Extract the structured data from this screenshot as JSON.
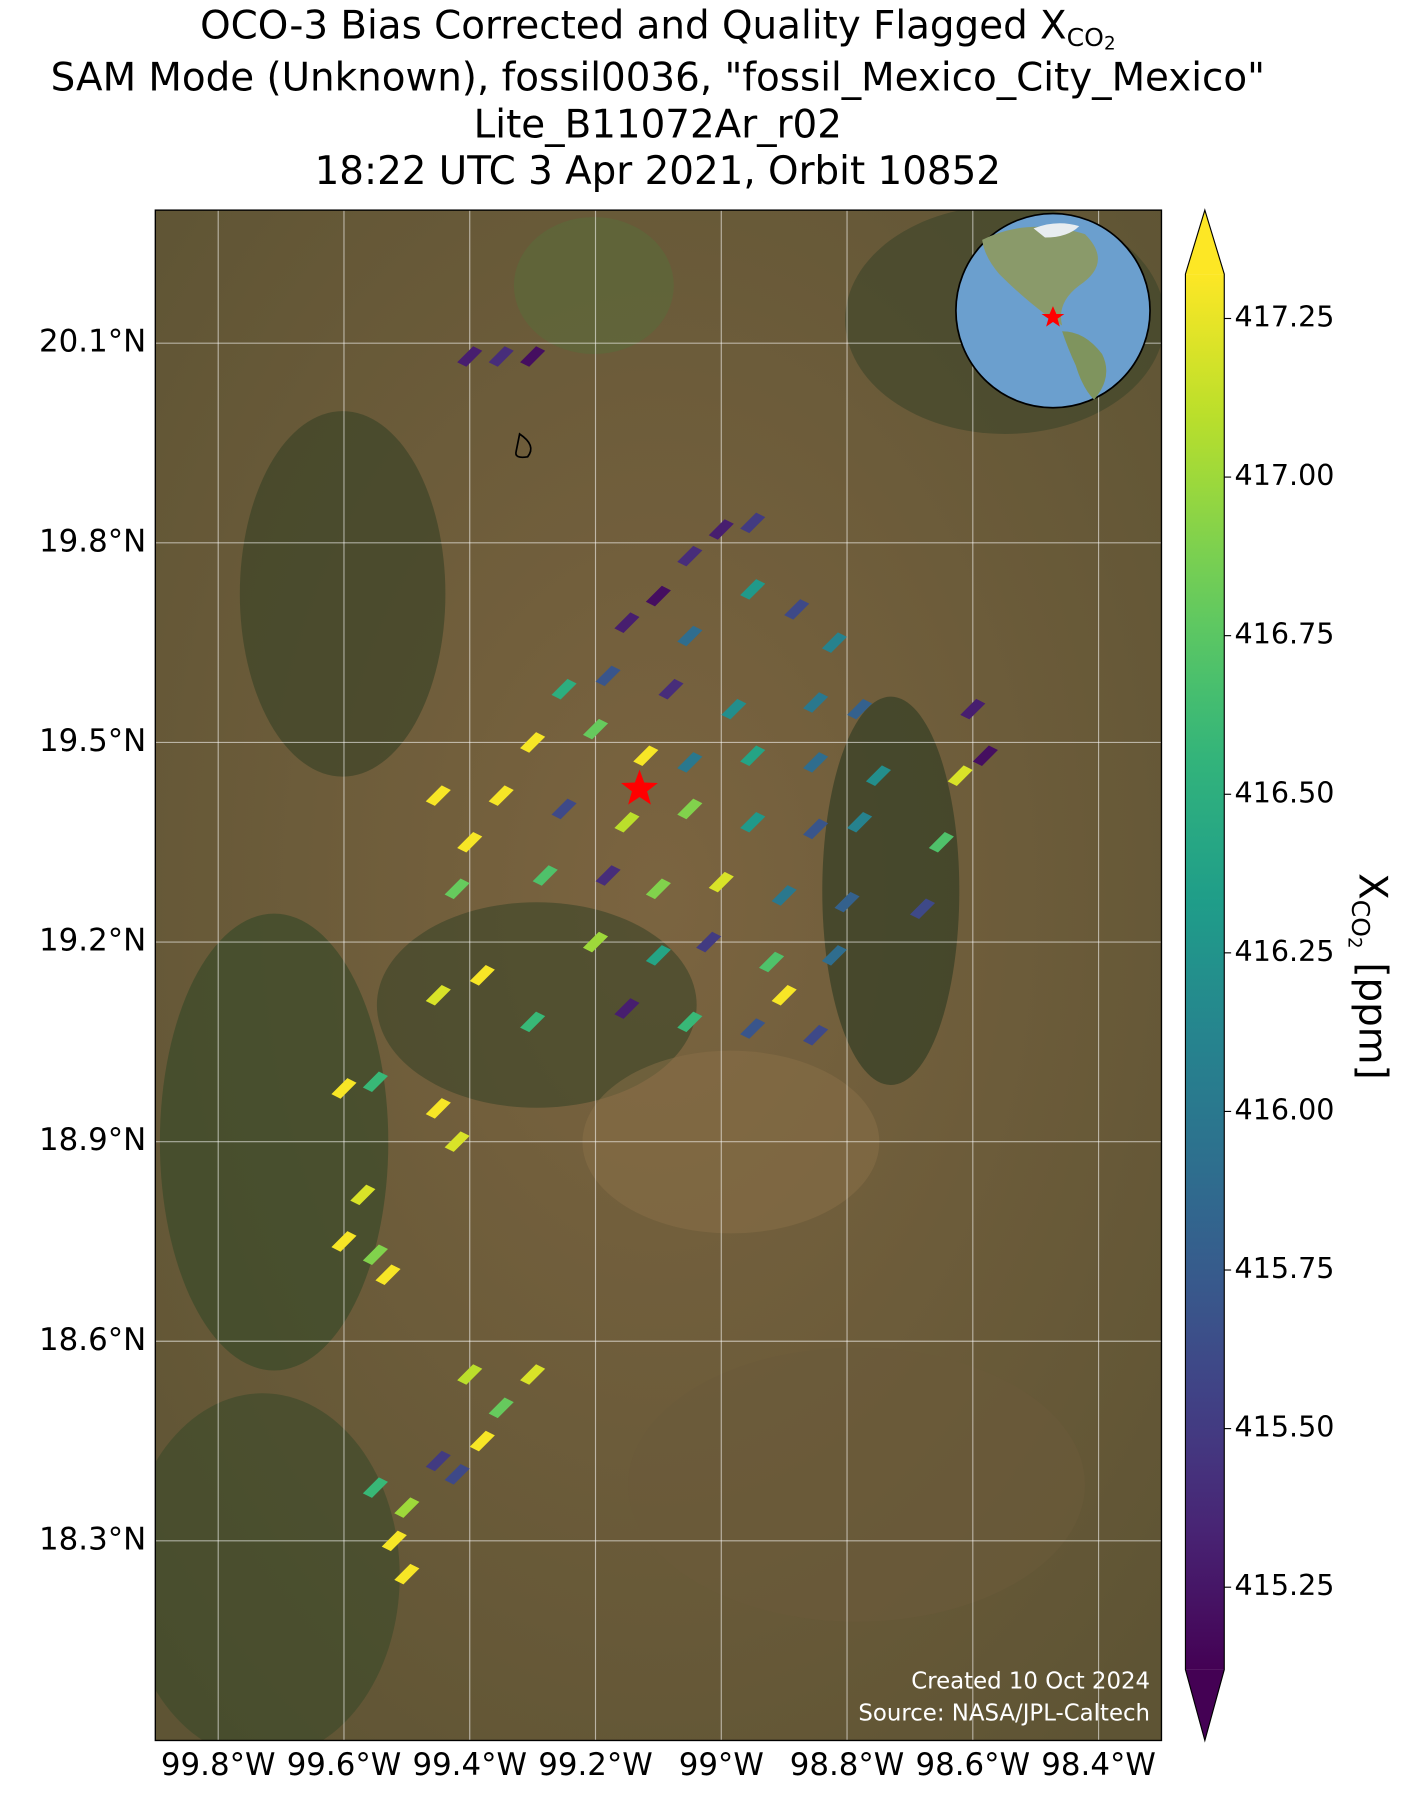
{
  "chart_data": {
    "type": "map",
    "title": {
      "line1": "OCO-3 Bias Corrected and Quality Flagged X",
      "line1_sub": "CO",
      "line1_subsub": "2",
      "line2": "SAM Mode (Unknown), fossil0036, \"fossil_Mexico_City_Mexico\"",
      "line3": "Lite_B11072Ar_r02",
      "line4": "18:22 UTC 3 Apr 2021, Orbit 10852"
    },
    "xlim": [
      -99.9,
      -98.3
    ],
    "ylim": [
      18.0,
      20.3
    ],
    "xticks": [
      {
        "value": -99.8,
        "label": "99.8°W"
      },
      {
        "value": -99.6,
        "label": "99.6°W"
      },
      {
        "value": -99.4,
        "label": "99.4°W"
      },
      {
        "value": -99.2,
        "label": "99.2°W"
      },
      {
        "value": -99.0,
        "label": "99°W"
      },
      {
        "value": -98.8,
        "label": "98.8°W"
      },
      {
        "value": -98.6,
        "label": "98.6°W"
      },
      {
        "value": -98.4,
        "label": "98.4°W"
      }
    ],
    "yticks": [
      {
        "value": 18.3,
        "label": "18.3°N"
      },
      {
        "value": 18.6,
        "label": "18.6°N"
      },
      {
        "value": 18.9,
        "label": "18.9°N"
      },
      {
        "value": 19.2,
        "label": "19.2°N"
      },
      {
        "value": 19.5,
        "label": "19.5°N"
      },
      {
        "value": 19.8,
        "label": "19.8°N"
      },
      {
        "value": 20.1,
        "label": "20.1°N"
      }
    ],
    "grid": true,
    "target_lon": -99.13,
    "target_lat": 19.43,
    "lon": [
      -99.4,
      -99.35,
      -99.3,
      -99.0,
      -98.95,
      -99.05,
      -99.1,
      -98.95,
      -98.88,
      -99.15,
      -99.05,
      -98.82,
      -99.25,
      -99.18,
      -99.08,
      -98.98,
      -98.85,
      -98.78,
      -99.3,
      -99.2,
      -99.12,
      -99.05,
      -98.95,
      -98.85,
      -98.75,
      -99.35,
      -99.25,
      -99.15,
      -99.05,
      -98.95,
      -98.85,
      -98.78,
      -99.28,
      -99.18,
      -99.1,
      -99.0,
      -98.9,
      -98.8,
      -99.2,
      -99.1,
      -99.02,
      -98.92,
      -98.82,
      -99.15,
      -99.05,
      -98.95,
      -98.85,
      -98.9,
      -98.6,
      -98.62,
      -98.58,
      -98.65,
      -98.68,
      -99.45,
      -99.4,
      -99.42,
      -99.38,
      -99.45,
      -99.3,
      -99.6,
      -99.55,
      -99.45,
      -99.42,
      -99.6,
      -99.55,
      -99.53,
      -99.57,
      -99.4,
      -99.35,
      -99.38,
      -99.45,
      -99.3,
      -99.5,
      -99.52,
      -99.55,
      -99.5,
      -99.42
    ],
    "lat": [
      20.08,
      20.08,
      20.08,
      19.82,
      19.83,
      19.78,
      19.72,
      19.73,
      19.7,
      19.68,
      19.66,
      19.65,
      19.58,
      19.6,
      19.58,
      19.55,
      19.56,
      19.55,
      19.5,
      19.52,
      19.48,
      19.47,
      19.48,
      19.47,
      19.45,
      19.42,
      19.4,
      19.38,
      19.4,
      19.38,
      19.37,
      19.38,
      19.3,
      19.3,
      19.28,
      19.29,
      19.27,
      19.26,
      19.2,
      19.18,
      19.2,
      19.17,
      19.18,
      19.1,
      19.08,
      19.07,
      19.06,
      19.12,
      19.55,
      19.45,
      19.48,
      19.35,
      19.25,
      19.42,
      19.35,
      19.28,
      19.15,
      19.12,
      19.08,
      18.98,
      18.99,
      18.95,
      18.9,
      18.75,
      18.73,
      18.7,
      18.82,
      18.55,
      18.5,
      18.45,
      18.42,
      18.55,
      18.35,
      18.3,
      18.38,
      18.25,
      18.4
    ],
    "values": [
      415.3,
      415.4,
      415.2,
      415.3,
      415.5,
      415.4,
      415.2,
      416.3,
      415.6,
      415.3,
      415.9,
      416.1,
      416.5,
      415.7,
      415.4,
      416.2,
      416.0,
      415.8,
      417.3,
      416.8,
      417.3,
      416.0,
      416.4,
      415.9,
      416.2,
      417.3,
      415.6,
      417.1,
      416.9,
      416.3,
      415.7,
      416.1,
      416.7,
      415.4,
      416.9,
      417.2,
      416.0,
      415.8,
      417.0,
      416.4,
      415.5,
      416.7,
      415.9,
      415.3,
      416.6,
      415.7,
      415.6,
      417.3,
      415.3,
      417.2,
      415.2,
      416.7,
      415.6,
      417.3,
      417.3,
      416.8,
      417.3,
      417.2,
      416.6,
      417.3,
      416.6,
      417.3,
      417.2,
      417.3,
      416.9,
      417.3,
      417.2,
      417.1,
      416.8,
      417.3,
      415.5,
      417.2,
      417.0,
      417.3,
      416.6,
      417.3,
      415.6
    ],
    "colorbar": {
      "clim": [
        415.12,
        417.32
      ],
      "ticks": [
        415.25,
        {
          "value": 415.5,
          "label": "415.50"
        },
        415.75,
        {
          "value": 416.0,
          "label": "416.00"
        },
        416.25,
        {
          "value": 416.5,
          "label": "416.50"
        },
        416.75,
        {
          "value": 417.0,
          "label": "417.00"
        },
        417.25
      ],
      "label_main": "X",
      "label_sub": "CO",
      "label_subsub": "2",
      "label_unit": "[ppm]"
    },
    "credit_created": "Created 10 Oct 2024",
    "credit_source": "Source: NASA/JPL-Caltech"
  }
}
